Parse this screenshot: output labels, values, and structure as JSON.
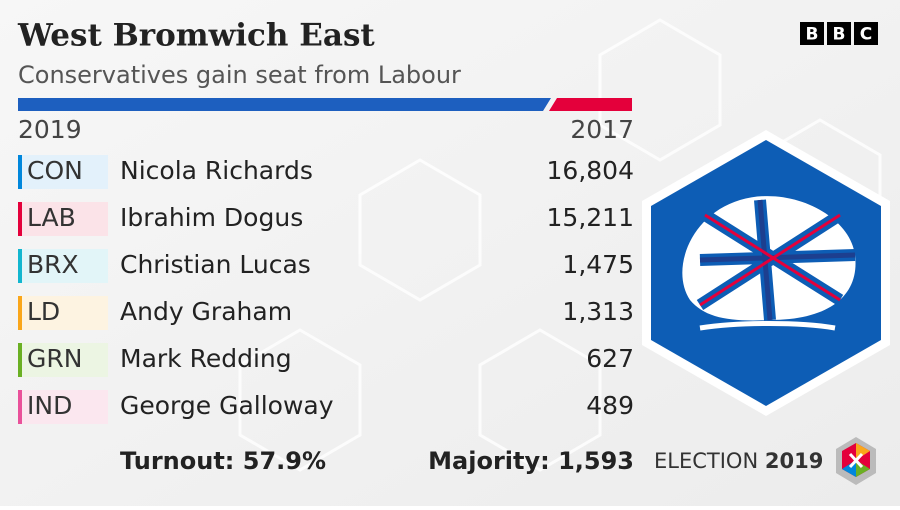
{
  "header": {
    "title": "West Bromwich East",
    "subtitle": "Conservatives gain seat from Labour",
    "logo_letters": [
      "B",
      "B",
      "C"
    ]
  },
  "table": {
    "columns": [
      "2019",
      "2017"
    ],
    "rows": [
      {
        "party": "CON",
        "candidate": "Nicola Richards",
        "votes": "16,804",
        "color": "#0087dc",
        "tint": "#e3f1fb"
      },
      {
        "party": "LAB",
        "candidate": "Ibrahim Dogus",
        "votes": "15,211",
        "color": "#e4003b",
        "tint": "#fbe3e8"
      },
      {
        "party": "BRX",
        "candidate": "Christian Lucas",
        "votes": "1,475",
        "color": "#12b6cf",
        "tint": "#e2f5f8"
      },
      {
        "party": "LD",
        "candidate": "Andy Graham",
        "votes": "1,313",
        "color": "#faa61a",
        "tint": "#fdf3e1"
      },
      {
        "party": "GRN",
        "candidate": "Mark Redding",
        "votes": "627",
        "color": "#6ab023",
        "tint": "#ecf5e3"
      },
      {
        "party": "IND",
        "candidate": "George Galloway",
        "votes": "489",
        "color": "#e9519a",
        "tint": "#fbe7ef"
      }
    ]
  },
  "footer": {
    "turnout": "Turnout: 57.9%",
    "majority": "Majority: 1,593",
    "election_label": "ELECTION",
    "election_year": "2019"
  }
}
